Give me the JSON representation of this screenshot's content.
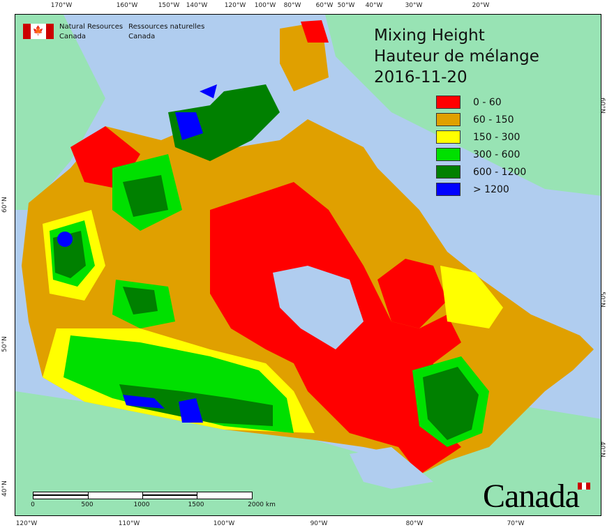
{
  "top_ticks": [
    "170°W",
    "160°W",
    "150°W",
    "140°W",
    "120°W",
    "100°W",
    "80°W",
    "60°W",
    "50°W",
    "40°W",
    "30°W",
    "20°W"
  ],
  "bottom_ticks": [
    "120°W",
    "110°W",
    "100°W",
    "90°W",
    "80°W",
    "70°W"
  ],
  "left_ticks": [
    "60°N",
    "50°N",
    "40°N"
  ],
  "right_ticks": [
    "60°N",
    "50°N",
    "40°N"
  ],
  "agency": {
    "en_line1": "Natural Resources",
    "en_line2": "Canada",
    "fr_line1": "Ressources naturelles",
    "fr_line2": "Canada"
  },
  "title": {
    "en": "Mixing Height",
    "fr": "Hauteur de mélange",
    "date": "2016-11-20"
  },
  "legend": [
    {
      "label": "0 - 60",
      "color": "#ff0000"
    },
    {
      "label": "60 - 150",
      "color": "#e0a000"
    },
    {
      "label": "150 - 300",
      "color": "#ffff00"
    },
    {
      "label": "300 - 600",
      "color": "#00e000"
    },
    {
      "label": "600 - 1200",
      "color": "#008000"
    },
    {
      "label": "> 1200",
      "color": "#0000ff"
    }
  ],
  "scale": {
    "labels": [
      "0",
      "500",
      "1000",
      "1500",
      "2000 km"
    ]
  },
  "wordmark": "Canada",
  "colors": {
    "ocean": "#b0cdef",
    "land": "#98e3b4"
  }
}
